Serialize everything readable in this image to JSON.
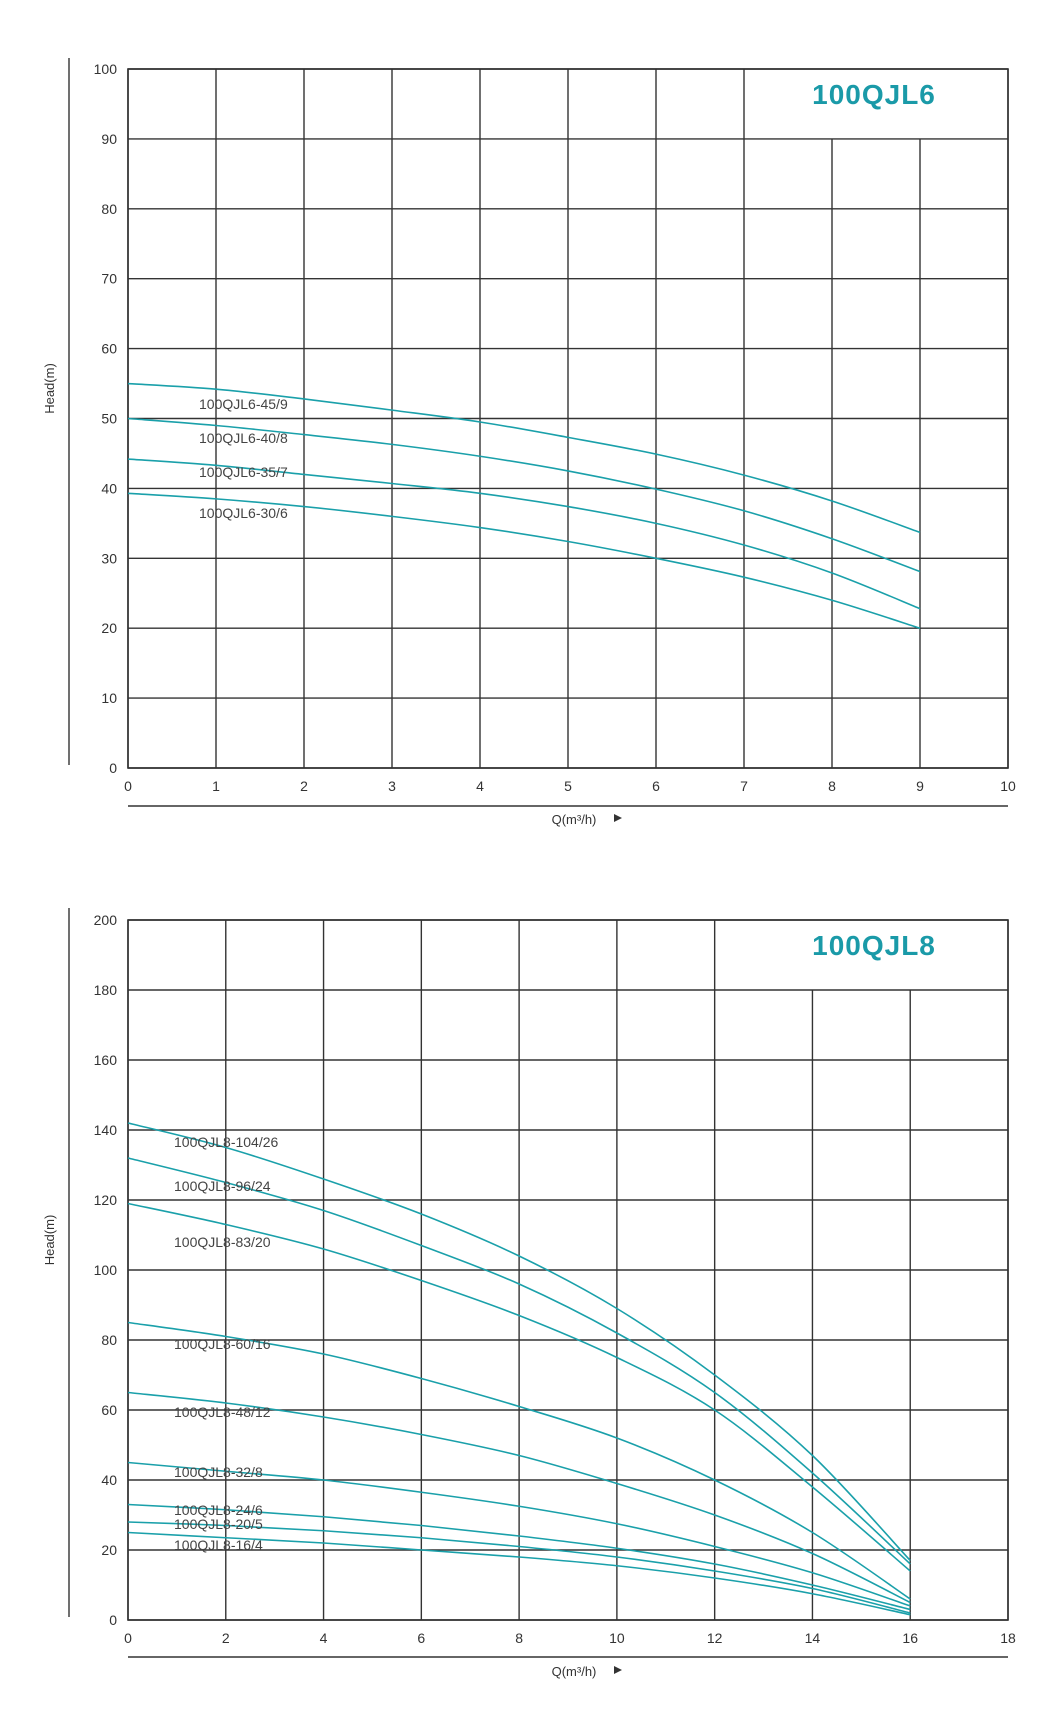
{
  "chart_data": [
    {
      "type": "line",
      "title": "100QJL6",
      "xlabel": "Q(m³/h)",
      "ylabel": "Head(m)",
      "xlim": [
        0,
        10
      ],
      "ylim": [
        0,
        100
      ],
      "x_ticks": [
        0,
        1,
        2,
        3,
        4,
        5,
        6,
        7,
        8,
        9,
        10
      ],
      "y_ticks": [
        0,
        10,
        20,
        30,
        40,
        50,
        60,
        70,
        80,
        90,
        100
      ],
      "grid": true,
      "series": [
        {
          "name": "100QJL6-45/9",
          "x": [
            0,
            1,
            2,
            3,
            4,
            5,
            6,
            7,
            8,
            9
          ],
          "y": [
            55,
            54.2,
            52.8,
            51.2,
            49.5,
            47.3,
            44.9,
            41.9,
            38.2,
            33.7
          ]
        },
        {
          "name": "100QJL6-40/8",
          "x": [
            0,
            1,
            2,
            3,
            4,
            5,
            6,
            7,
            8,
            9
          ],
          "y": [
            50,
            49,
            47.7,
            46.3,
            44.6,
            42.5,
            39.9,
            36.8,
            32.8,
            28.1
          ]
        },
        {
          "name": "100QJL6-35/7",
          "x": [
            0,
            1,
            2,
            3,
            4,
            5,
            6,
            7,
            8,
            9
          ],
          "y": [
            44.2,
            43.3,
            42,
            40.7,
            39.3,
            37.4,
            35,
            31.9,
            27.9,
            22.8
          ]
        },
        {
          "name": "100QJL6-30/6",
          "x": [
            0,
            1,
            2,
            3,
            4,
            5,
            6,
            7,
            8,
            9
          ],
          "y": [
            39.3,
            38.5,
            37.4,
            36,
            34.4,
            32.4,
            30,
            27.3,
            24,
            20
          ]
        }
      ]
    },
    {
      "type": "line",
      "title": "100QJL8",
      "xlabel": "Q(m³/h)",
      "ylabel": "Head(m)",
      "xlim": [
        0,
        18
      ],
      "ylim": [
        0,
        200
      ],
      "x_ticks": [
        0,
        2,
        4,
        6,
        8,
        10,
        12,
        14,
        16,
        18
      ],
      "y_ticks": [
        0,
        20,
        40,
        60,
        80,
        100,
        120,
        140,
        160,
        180,
        200
      ],
      "grid": true,
      "series": [
        {
          "name": "100QJL8-104/26",
          "x": [
            0,
            2,
            4,
            6,
            8,
            10,
            12,
            14,
            16
          ],
          "y": [
            142,
            135,
            126,
            116,
            104,
            89,
            70,
            47,
            17
          ]
        },
        {
          "name": "100QJL8-96/24",
          "x": [
            0,
            2,
            4,
            6,
            8,
            10,
            12,
            14,
            16
          ],
          "y": [
            132,
            125,
            117,
            107,
            96,
            82,
            65,
            42,
            16
          ]
        },
        {
          "name": "100QJL8-83/20",
          "x": [
            0,
            2,
            4,
            6,
            8,
            10,
            12,
            14,
            16
          ],
          "y": [
            119,
            113,
            106,
            97,
            87,
            75,
            60,
            38,
            14
          ]
        },
        {
          "name": "100QJL8-60/16",
          "x": [
            0,
            2,
            4,
            6,
            8,
            10,
            12,
            14,
            16
          ],
          "y": [
            85,
            81,
            76,
            69,
            61,
            52,
            40,
            25,
            6
          ]
        },
        {
          "name": "100QJL8-48/12",
          "x": [
            0,
            2,
            4,
            6,
            8,
            10,
            12,
            14,
            16
          ],
          "y": [
            65,
            62,
            58,
            53,
            47,
            39,
            30,
            19,
            5
          ]
        },
        {
          "name": "100QJL8-32/8",
          "x": [
            0,
            2,
            4,
            6,
            8,
            10,
            12,
            14,
            16
          ],
          "y": [
            45,
            42.5,
            40,
            36.5,
            32.5,
            27.5,
            21,
            13.5,
            4
          ]
        },
        {
          "name": "100QJL8-24/6",
          "x": [
            0,
            2,
            4,
            6,
            8,
            10,
            12,
            14,
            16
          ],
          "y": [
            33,
            31.5,
            29.5,
            27,
            24,
            20.5,
            16,
            10,
            3
          ]
        },
        {
          "name": "100QJL8-20/5",
          "x": [
            0,
            2,
            4,
            6,
            8,
            10,
            12,
            14,
            16
          ],
          "y": [
            28,
            27,
            25.5,
            23.5,
            21,
            18,
            14,
            9,
            2
          ]
        },
        {
          "name": "100QJL8-16/4",
          "x": [
            0,
            2,
            4,
            6,
            8,
            10,
            12,
            14,
            16
          ],
          "y": [
            25,
            23.5,
            22,
            20,
            18,
            15.5,
            12,
            7.5,
            1.5
          ]
        }
      ]
    }
  ]
}
